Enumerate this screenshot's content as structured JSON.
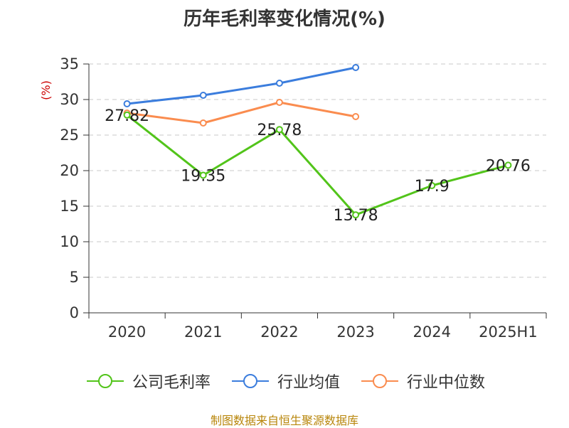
{
  "source_note": "制图数据来自恒生聚源数据库",
  "chart_data": {
    "type": "line",
    "title": "历年毛利率变化情况(%)",
    "ylabel": "(%)",
    "xlabel": "",
    "categories": [
      "2020",
      "2021",
      "2022",
      "2023",
      "2024",
      "2025H1"
    ],
    "ylim": [
      0,
      35
    ],
    "yticks": [
      0,
      5,
      10,
      15,
      20,
      25,
      30,
      35
    ],
    "grid": "dashed horizontal",
    "legend_position": "bottom",
    "series": [
      {
        "name": "公司毛利率",
        "color": "#52c41a",
        "values": [
          27.82,
          19.35,
          25.78,
          13.78,
          17.9,
          20.76
        ],
        "data_labels": [
          "27.82",
          "19.35",
          "25.78",
          "13.78",
          "17.9",
          "20.76"
        ]
      },
      {
        "name": "行业均值",
        "color": "#3b7ddd",
        "values": [
          29.4,
          30.6,
          32.3,
          34.5,
          null,
          null
        ]
      },
      {
        "name": "行业中位数",
        "color": "#fa8c4f",
        "values": [
          28.1,
          26.7,
          29.6,
          27.6,
          null,
          null
        ]
      }
    ]
  }
}
